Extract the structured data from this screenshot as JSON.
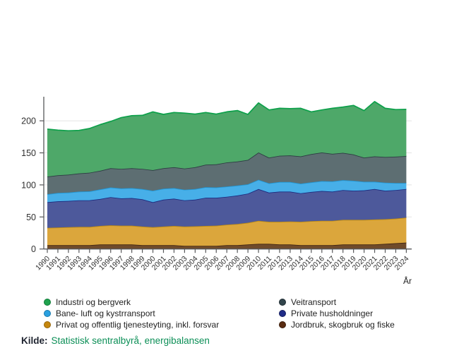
{
  "source": {
    "prefix": "Kilde:",
    "text": "Statistisk sentralbyrå, energibalansen"
  },
  "legend": {
    "columns": [
      [
        {
          "label": "Industri og bergverk",
          "color": "#1fa24e",
          "border": "#0e7a36"
        },
        {
          "label": "Bane- luft og kystrransport",
          "color": "#2aa0e0",
          "border": "#1879ad"
        },
        {
          "label": "Privat og offentlig tjenesteyting, inkl. forsvar",
          "color": "#c5870e",
          "border": "#96660a"
        }
      ],
      [
        {
          "label": "Veitransport",
          "color": "#32454c",
          "border": "#1d2a30"
        },
        {
          "label": "Private husholdninger",
          "color": "#1f2c87",
          "border": "#141d5e"
        },
        {
          "label": "Jordbruk, skogbruk og fiske",
          "color": "#5a2d12",
          "border": "#3a1c0a"
        }
      ]
    ]
  },
  "chart_data": {
    "type": "area",
    "stacked": true,
    "title": "",
    "xlabel": "År",
    "ylabel": "",
    "ylim": [
      0,
      237
    ],
    "yticks": [
      0,
      50,
      100,
      150,
      200
    ],
    "grid": true,
    "legend_position": "bottom",
    "x": [
      1990,
      1991,
      1992,
      1993,
      1994,
      1995,
      1996,
      1997,
      1998,
      1999,
      2000,
      2001,
      2002,
      2003,
      2004,
      2005,
      2006,
      2007,
      2008,
      2009,
      2010,
      2011,
      2012,
      2013,
      2014,
      2015,
      2016,
      2017,
      2018,
      2019,
      2020,
      2021,
      2022,
      2023,
      2024
    ],
    "series": [
      {
        "name": "Jordbruk, skogbruk og fiske",
        "fill": "#6f4b2b",
        "stroke": "#3f2310",
        "values": [
          6,
          6,
          6,
          6,
          6,
          7,
          7,
          7,
          7,
          6,
          6,
          6,
          6,
          5,
          5,
          5,
          5,
          6,
          6,
          7,
          8,
          8,
          7,
          7,
          6,
          6,
          6,
          6,
          7,
          7,
          7,
          7,
          8,
          9,
          10
        ]
      },
      {
        "name": "Privat og offentlig tjenesteyting, inkl. forsvar",
        "fill": "#dba63c",
        "stroke": "#bd8a10",
        "values": [
          27,
          27.5,
          28,
          28.5,
          28.5,
          29,
          30,
          29.5,
          29.5,
          29,
          28,
          29,
          30,
          30,
          30.5,
          31,
          31.5,
          32,
          33,
          34,
          36,
          34.5,
          35.5,
          36,
          36.5,
          37.5,
          38,
          38,
          38.5,
          38.5,
          38.5,
          39,
          38.5,
          38.5,
          39
        ]
      },
      {
        "name": "Private husholdninger",
        "fill": "#4d599b",
        "stroke": "#1b2a7e",
        "values": [
          40,
          41,
          41,
          41.5,
          41.5,
          42,
          44,
          42.5,
          43,
          42.5,
          39,
          42,
          42.5,
          41,
          41.5,
          44,
          43.5,
          43.5,
          44.5,
          45.5,
          49.5,
          45.5,
          47,
          46.5,
          44.5,
          45.5,
          46.5,
          45.5,
          46.5,
          45.5,
          46,
          47.5,
          44.5,
          44.5,
          44.5
        ]
      },
      {
        "name": "Bane- luft og kystrransport",
        "fill": "#47afe8",
        "stroke": "#2196d3",
        "values": [
          12.5,
          13,
          13,
          13.5,
          14,
          15,
          15,
          15.5,
          15.5,
          16,
          18,
          17,
          16.5,
          16.5,
          16.5,
          16.5,
          16,
          16,
          15.5,
          14.5,
          14.5,
          14.5,
          15,
          15,
          15,
          15,
          15.5,
          16,
          15.5,
          15.5,
          13.5,
          11.5,
          12.5,
          11,
          9.5
        ]
      },
      {
        "name": "Veitransport",
        "fill": "#5d6e72",
        "stroke": "#2c3c42",
        "values": [
          27.5,
          27.5,
          28,
          28.5,
          29,
          29,
          30,
          30.5,
          31,
          31.5,
          32,
          32,
          32.5,
          33,
          34,
          35,
          36,
          37.5,
          37.5,
          38,
          42.5,
          40,
          41,
          41.5,
          42.5,
          44,
          44.5,
          43,
          42.5,
          41,
          37.5,
          39.5,
          40,
          41,
          42
        ]
      },
      {
        "name": "Industri og bergverk",
        "fill": "#4ea869",
        "stroke": "#0ca04a",
        "values": [
          74,
          70.5,
          68.5,
          67,
          69,
          72,
          73,
          80,
          82,
          83.5,
          91,
          84,
          85.5,
          86.5,
          83,
          81.5,
          78.5,
          79,
          79.5,
          71,
          77.5,
          74.5,
          74,
          73,
          75,
          66,
          66.5,
          71,
          71.5,
          76.5,
          73.5,
          85.5,
          76,
          73.5,
          73
        ]
      }
    ]
  }
}
